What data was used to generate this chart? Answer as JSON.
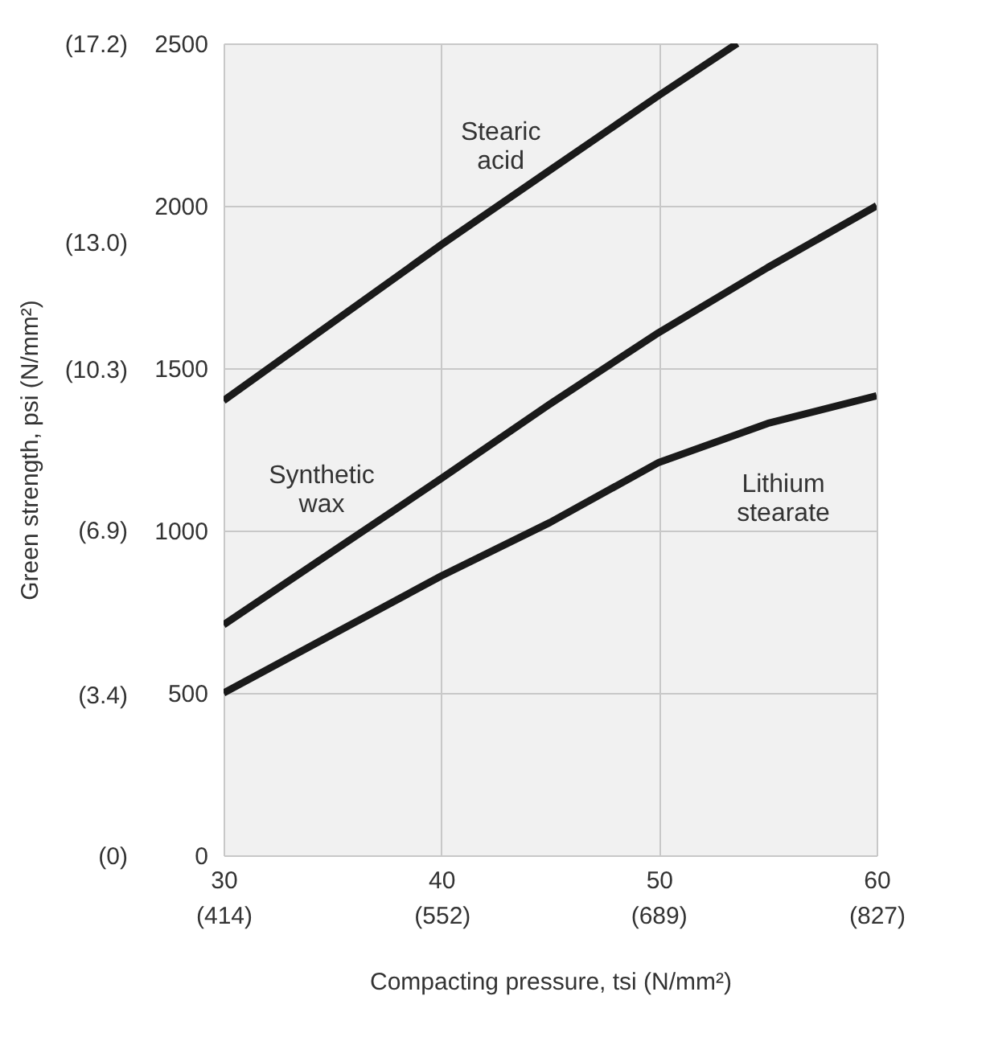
{
  "chart_data": {
    "type": "line",
    "xlabel": "Compacting pressure, tsi (N/mm²)",
    "y2label": "Green strength, psi (N/mm²)",
    "xlim": [
      30,
      60
    ],
    "xticks": [
      30,
      40,
      50,
      60
    ],
    "x2lim": [
      414,
      827
    ],
    "x2ticks": [
      {
        "value": 414,
        "label": "(414)"
      },
      {
        "value": 552,
        "label": "(552)"
      },
      {
        "value": 689,
        "label": "(689)"
      },
      {
        "value": 827,
        "label": "(827)"
      }
    ],
    "ylim": [
      0,
      2500
    ],
    "yticks": [
      0,
      500,
      1000,
      1500,
      2000,
      2500
    ],
    "y2lim": [
      0,
      17.2
    ],
    "y2ticks": [
      {
        "value": 0,
        "label": "(0)"
      },
      {
        "value": 3.4,
        "label": "(3.4)"
      },
      {
        "value": 6.9,
        "label": "(6.9)"
      },
      {
        "value": 10.3,
        "label": "(10.3)"
      },
      {
        "value": 13.0,
        "label": "(13.0)"
      },
      {
        "value": 17.2,
        "label": "(17.2)"
      }
    ],
    "grid": true,
    "marker": "none",
    "line_style": "solid",
    "series": [
      {
        "name": "Stearic acid",
        "color": "#1a1a1a",
        "x": [
          30,
          35,
          40,
          45,
          50,
          53.6
        ],
        "values": [
          1400,
          1640,
          1880,
          2110,
          2340,
          2500
        ]
      },
      {
        "name": "Synthetic wax",
        "color": "#1a1a1a",
        "x": [
          30,
          35,
          40,
          45,
          50,
          55,
          60
        ],
        "values": [
          710,
          935,
          1160,
          1390,
          1610,
          1810,
          2000
        ]
      },
      {
        "name": "Lithium stearate",
        "color": "#1a1a1a",
        "x": [
          30,
          35,
          40,
          45,
          50,
          55,
          60
        ],
        "values": [
          500,
          680,
          860,
          1025,
          1210,
          1330,
          1415
        ]
      }
    ]
  }
}
